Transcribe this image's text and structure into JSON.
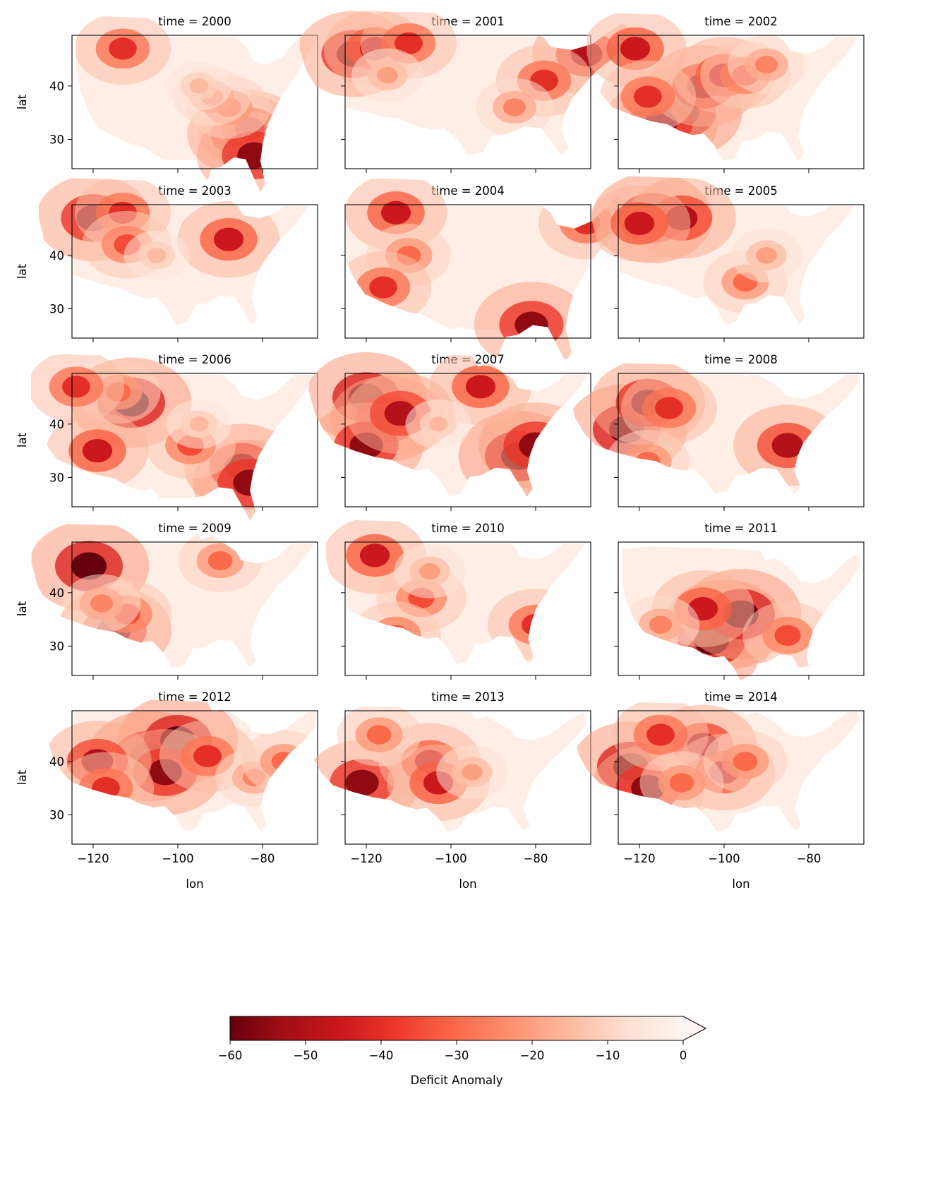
{
  "chart_data": {
    "type": "heatmap",
    "layout": "facet-grid",
    "facet_titles": [
      "time = 2000",
      "time = 2001",
      "time = 2002",
      "time = 2003",
      "time = 2004",
      "time = 2005",
      "time = 2006",
      "time = 2007",
      "time = 2008",
      "time = 2009",
      "time = 2010",
      "time = 2011",
      "time = 2012",
      "time = 2013",
      "time = 2014"
    ],
    "xlabel": "lon",
    "ylabel": "lat",
    "xlim": [
      -125,
      -67
    ],
    "ylim": [
      24.5,
      49.5
    ],
    "xticks": [
      -120,
      -100,
      -80
    ],
    "xtick_labels": [
      "−120",
      "−100",
      "−80"
    ],
    "yticks": [
      30,
      40
    ],
    "ytick_labels": [
      "30",
      "40"
    ],
    "colorbar": {
      "label": "Deficit Anomaly",
      "colormap": "Reds_r",
      "vmin": -60,
      "vmax": 0,
      "extend": "max",
      "ticks": [
        -60,
        -50,
        -40,
        -30,
        -20,
        -10,
        0
      ],
      "tick_labels": [
        "−60",
        "−50",
        "−40",
        "−30",
        "−20",
        "−10",
        "0"
      ],
      "colors": [
        "#67000d",
        "#a50f15",
        "#cb181d",
        "#ef3b2c",
        "#fb6a4a",
        "#fc9272",
        "#fcbba1",
        "#fee0d2",
        "#fff5f0"
      ]
    },
    "hotspots": [
      [
        [
          -85,
          31,
          -50
        ],
        [
          -83,
          32,
          -45
        ],
        [
          -82,
          27,
          -55
        ],
        [
          -88,
          36,
          -30
        ],
        [
          -92,
          38,
          -25
        ],
        [
          -113,
          47,
          -40
        ],
        [
          -95,
          40,
          -15
        ]
      ],
      [
        [
          -123,
          46,
          -55
        ],
        [
          -118,
          47,
          -45
        ],
        [
          -110,
          48,
          -40
        ],
        [
          -68,
          46,
          -50
        ],
        [
          -78,
          41,
          -40
        ],
        [
          -85,
          36,
          -25
        ],
        [
          -115,
          42,
          -20
        ]
      ],
      [
        [
          -110,
          35,
          -60
        ],
        [
          -115,
          33,
          -55
        ],
        [
          -105,
          40,
          -50
        ],
        [
          -100,
          42,
          -45
        ],
        [
          -121,
          47,
          -45
        ],
        [
          -118,
          38,
          -40
        ],
        [
          -95,
          42,
          -35
        ],
        [
          -90,
          44,
          -25
        ]
      ],
      [
        [
          -120,
          47,
          -55
        ],
        [
          -113,
          48,
          -40
        ],
        [
          -112,
          42,
          -35
        ],
        [
          -88,
          43,
          -45
        ],
        [
          -105,
          40,
          -15
        ]
      ],
      [
        [
          -113,
          48,
          -45
        ],
        [
          -110,
          40,
          -30
        ],
        [
          -116,
          34,
          -40
        ],
        [
          -81,
          27,
          -55
        ],
        [
          -68,
          46,
          -40
        ]
      ],
      [
        [
          -117,
          47,
          -60
        ],
        [
          -110,
          47,
          -50
        ],
        [
          -120,
          46,
          -45
        ],
        [
          -95,
          35,
          -30
        ],
        [
          -90,
          40,
          -20
        ]
      ],
      [
        [
          -111,
          44,
          -60
        ],
        [
          -114,
          46,
          -30
        ],
        [
          -85,
          32,
          -55
        ],
        [
          -83,
          29,
          -55
        ],
        [
          -97,
          36,
          -35
        ],
        [
          -119,
          35,
          -45
        ],
        [
          -124,
          47,
          -40
        ],
        [
          -95,
          40,
          -15
        ]
      ],
      [
        [
          -120,
          45,
          -60
        ],
        [
          -115,
          41,
          -55
        ],
        [
          -120,
          36,
          -55
        ],
        [
          -112,
          42,
          -50
        ],
        [
          -84,
          34,
          -60
        ],
        [
          -80,
          36,
          -55
        ],
        [
          -93,
          47,
          -45
        ],
        [
          -103,
          40,
          -15
        ]
      ],
      [
        [
          -123,
          39,
          -60
        ],
        [
          -118,
          44,
          -55
        ],
        [
          -113,
          43,
          -40
        ],
        [
          -85,
          36,
          -50
        ],
        [
          -118,
          33,
          -30
        ]
      ],
      [
        [
          -121,
          45,
          -60
        ],
        [
          -115,
          33,
          -55
        ],
        [
          -112,
          36,
          -35
        ],
        [
          -118,
          38,
          -25
        ],
        [
          -90,
          46,
          -30
        ]
      ],
      [
        [
          -118,
          47,
          -45
        ],
        [
          -107,
          39,
          -35
        ],
        [
          -80,
          34,
          -40
        ],
        [
          -113,
          32,
          -35
        ],
        [
          -105,
          44,
          -20
        ]
      ],
      [
        [
          -100,
          34,
          -60
        ],
        [
          -103,
          31,
          -60
        ],
        [
          -96,
          36,
          -60
        ],
        [
          -105,
          37,
          -45
        ],
        [
          -85,
          32,
          -35
        ],
        [
          -115,
          34,
          -25
        ]
      ],
      [
        [
          -107,
          41,
          -60
        ],
        [
          -100,
          44,
          -60
        ],
        [
          -103,
          38,
          -55
        ],
        [
          -93,
          41,
          -40
        ],
        [
          -119,
          40,
          -50
        ],
        [
          -117,
          35,
          -40
        ],
        [
          -82,
          37,
          -25
        ],
        [
          -75,
          40,
          -30
        ]
      ],
      [
        [
          -121,
          36,
          -55
        ],
        [
          -105,
          40,
          -45
        ],
        [
          -103,
          36,
          -45
        ],
        [
          -117,
          45,
          -30
        ],
        [
          -95,
          38,
          -20
        ]
      ],
      [
        [
          -122,
          39,
          -60
        ],
        [
          -118,
          35,
          -55
        ],
        [
          -105,
          43,
          -50
        ],
        [
          -100,
          38,
          -45
        ],
        [
          -115,
          45,
          -40
        ],
        [
          -95,
          40,
          -30
        ],
        [
          -110,
          36,
          -30
        ]
      ]
    ]
  }
}
